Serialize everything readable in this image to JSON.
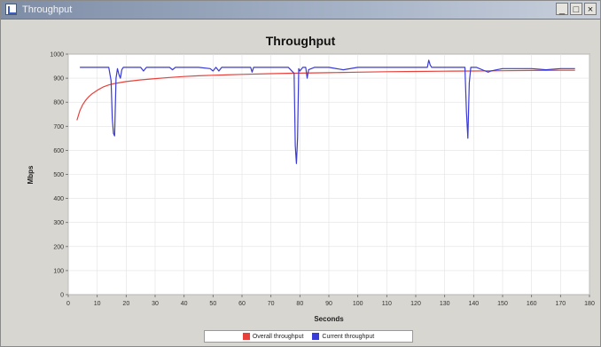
{
  "window": {
    "title": "Throughput",
    "minimize_label": "_",
    "maximize_label": "□",
    "close_label": "×"
  },
  "colors": {
    "overall": "#e8413c",
    "current": "#3a3ad6",
    "plot_bg": "#ffffff",
    "grid": "#e2e2e2"
  },
  "chart_data": {
    "type": "line",
    "title": "Throughput",
    "xlabel": "Seconds",
    "ylabel": "Mbps",
    "xlim": [
      0,
      180
    ],
    "ylim": [
      0,
      1000
    ],
    "xticks": [
      0,
      10,
      20,
      30,
      40,
      50,
      60,
      70,
      80,
      90,
      100,
      110,
      120,
      130,
      140,
      150,
      160,
      170,
      180
    ],
    "yticks": [
      0,
      100,
      200,
      300,
      400,
      500,
      600,
      700,
      800,
      900,
      1000
    ],
    "grid": true,
    "legend_position": "bottom-center",
    "series": [
      {
        "name": "Overall throughput",
        "x": [
          3,
          4,
          5,
          6,
          7,
          8,
          10,
          12,
          14,
          16,
          18,
          20,
          25,
          30,
          35,
          40,
          45,
          50,
          60,
          70,
          80,
          90,
          100,
          110,
          120,
          130,
          140,
          150,
          160,
          170,
          175
        ],
        "y": [
          725,
          765,
          790,
          808,
          822,
          833,
          850,
          863,
          872,
          878,
          882,
          886,
          893,
          898,
          903,
          907,
          910,
          912,
          916,
          919,
          921,
          923,
          925,
          927,
          928,
          929,
          930,
          931,
          932,
          933,
          933
        ]
      },
      {
        "name": "Current throughput",
        "x": [
          4,
          14,
          14.8,
          15.2,
          15.6,
          16,
          16.5,
          17,
          17.5,
          18,
          18.5,
          19,
          20,
          25,
          26,
          27,
          30,
          35,
          36,
          37,
          45,
          49,
          50,
          51,
          52,
          53,
          60,
          63,
          63.5,
          64,
          70,
          76,
          78,
          78.4,
          78.8,
          79.2,
          79.6,
          80,
          81,
          82,
          82.5,
          83,
          85,
          90,
          95,
          100,
          110,
          119,
          124,
          124.5,
          125,
          125.5,
          130,
          136,
          137,
          137.5,
          138,
          138.5,
          139,
          141,
          144,
          145,
          146,
          148,
          150,
          155,
          160,
          165,
          170,
          175
        ],
        "y": [
          945,
          945,
          890,
          730,
          670,
          660,
          900,
          940,
          915,
          900,
          935,
          945,
          945,
          945,
          930,
          945,
          945,
          945,
          935,
          945,
          945,
          940,
          930,
          945,
          930,
          945,
          945,
          945,
          925,
          945,
          945,
          945,
          920,
          620,
          545,
          650,
          940,
          930,
          945,
          945,
          900,
          935,
          945,
          945,
          935,
          945,
          945,
          945,
          945,
          975,
          955,
          945,
          945,
          945,
          945,
          760,
          650,
          880,
          945,
          945,
          930,
          925,
          930,
          935,
          940,
          940,
          940,
          935,
          940,
          940
        ]
      }
    ]
  }
}
